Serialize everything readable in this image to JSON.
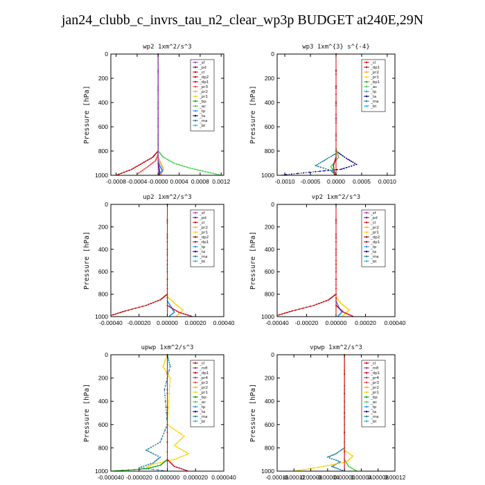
{
  "figure": {
    "title": "jan24_clubb_c_invrs_tau_n2_clear_wp3p  BUDGET at240E,29N"
  },
  "colors": {
    "sf": "#a040c0",
    "pd": "#800080",
    "cl": "#e00000",
    "dp2": "#c00000",
    "dp1": "#d00020",
    "pr3": "#ff4040",
    "pr2": "#ffa040",
    "pr1": "#ffd000",
    "pr4": "#e02060",
    "mfl": "#903090",
    "bp": "#00a000",
    "bp1": "#20b020",
    "ac": "#40d040",
    "tp": "#2090ff",
    "ta": "#000080",
    "ma": "#2080a0",
    "bt": "#00c0e0"
  },
  "chart_data": [
    {
      "type": "line",
      "title": "wp2   1xm^2/s^3",
      "xlabel": "",
      "ylabel": "Pressure [hPa]",
      "xlim": [
        -0.0009,
        0.00125
      ],
      "ylim": [
        1000,
        0
      ],
      "xticks": [
        -0.0008,
        -0.0004,
        0,
        0.0004,
        0.0008,
        0.0012
      ],
      "xtick_labels": [
        "-0.0008",
        "-0.0004",
        "-0.0000",
        "0.0004",
        "0.0008",
        "0.0012"
      ],
      "yticks": [
        0,
        200,
        400,
        600,
        800,
        1000
      ],
      "legend": [
        "_sf",
        "_pd",
        "_cl",
        "_dp2",
        "_dp1",
        "_pr3",
        "_pr2",
        "_pr1",
        "_bp",
        "_ac",
        "_tp",
        "_ta",
        "_ma",
        "_bt"
      ],
      "legend_keys": [
        "sf",
        "pd",
        "cl",
        "dp2",
        "dp1",
        "pr3",
        "pr2",
        "pr1",
        "bp",
        "ac",
        "tp",
        "ta",
        "ma",
        "bt"
      ],
      "series": [
        {
          "key": "ac",
          "x": [
            0,
            0,
            0.0001,
            0.0003,
            0.0006,
            0.0009,
            0.0012
          ],
          "y": [
            0,
            800,
            850,
            900,
            940,
            970,
            1000
          ]
        },
        {
          "key": "dp2",
          "x": [
            0,
            0,
            -0.0001,
            -0.0003,
            -0.0005,
            -0.0008
          ],
          "y": [
            0,
            800,
            850,
            900,
            950,
            1000
          ]
        },
        {
          "key": "pr3",
          "x": [
            0,
            0,
            -5e-05,
            -0.0002,
            -0.0004
          ],
          "y": [
            0,
            830,
            880,
            930,
            990
          ]
        },
        {
          "key": "pr2",
          "x": [
            0,
            0,
            5e-05,
            0.0001,
            5e-05
          ],
          "y": [
            0,
            850,
            900,
            950,
            1000
          ]
        },
        {
          "key": "tp",
          "x": [
            0,
            0,
            3e-05,
            8e-05,
            0
          ],
          "y": [
            0,
            880,
            920,
            960,
            1000
          ]
        },
        {
          "key": "pd",
          "x": [
            0,
            0,
            2e-05,
            3e-05
          ],
          "y": [
            0,
            900,
            950,
            1000
          ]
        },
        {
          "key": "sf",
          "x": [
            0,
            0
          ],
          "y": [
            0,
            1000
          ]
        }
      ]
    },
    {
      "type": "line",
      "title": "wp3   1xm^{3} s^{-4}",
      "xlabel": "",
      "ylabel": "Pressure [hPa]",
      "xlim": [
        -0.00115,
        0.00115
      ],
      "ylim": [
        1000,
        0
      ],
      "xticks": [
        -0.001,
        -0.0005,
        0,
        0.0005,
        0.001
      ],
      "xtick_labels": [
        "-0.0010",
        "-0.0005",
        "0.0000",
        "0.0005",
        "0.0010"
      ],
      "yticks": [
        0,
        200,
        400,
        600,
        800,
        1000
      ],
      "legend": [
        "_cl",
        "_dp1",
        "_pr2",
        "_pr1",
        "_bp1",
        "_ac",
        "_tp",
        "_ta",
        "_ma",
        "_bt"
      ],
      "legend_keys": [
        "cl",
        "dp1",
        "pr2",
        "pr1",
        "bp1",
        "ac",
        "tp",
        "ta",
        "ma",
        "bt"
      ],
      "series": [
        {
          "key": "ta",
          "x": [
            0,
            0,
            0.0002,
            0.0004,
            0.0001,
            -0.0004,
            -0.0011
          ],
          "y": [
            0,
            800,
            860,
            910,
            950,
            970,
            1000
          ]
        },
        {
          "key": "ma",
          "x": [
            0,
            0,
            -0.0002,
            -0.0004,
            -0.0001,
            0
          ],
          "y": [
            0,
            820,
            870,
            920,
            960,
            1000
          ]
        },
        {
          "key": "ac",
          "x": [
            0,
            0,
            5e-05,
            -0.0001,
            2e-05
          ],
          "y": [
            0,
            780,
            850,
            930,
            1000
          ]
        },
        {
          "key": "dp1",
          "x": [
            0,
            0,
            -5e-05,
            -3e-05
          ],
          "y": [
            0,
            850,
            920,
            1000
          ]
        },
        {
          "key": "cl",
          "x": [
            0,
            0
          ],
          "y": [
            0,
            1000
          ]
        }
      ]
    },
    {
      "type": "line",
      "title": "up2   1xm^2/s^3",
      "xlabel": "",
      "ylabel": "Pressure [hPa]",
      "xlim": [
        -0.0004,
        0.0004
      ],
      "ylim": [
        1000,
        0
      ],
      "xticks": [
        -0.0004,
        -0.0002,
        0,
        0.0002,
        0.0004
      ],
      "xtick_labels": [
        "-0.00040",
        "-0.00020",
        "0.00000",
        "0.00020",
        "0.00040"
      ],
      "yticks": [
        0,
        200,
        400,
        600,
        800,
        1000
      ],
      "legend": [
        "_sf",
        "_pd",
        "_cl",
        "_pr2",
        "_pr1",
        "_dp2",
        "_dp1",
        "_tp",
        "_ta",
        "_ma",
        "_bt"
      ],
      "legend_keys": [
        "sf",
        "pd",
        "cl",
        "pr2",
        "pr1",
        "dp2",
        "dp1",
        "tp",
        "ta",
        "ma",
        "bt"
      ],
      "series": [
        {
          "key": "dp2",
          "x": [
            0,
            0,
            -5e-05,
            -0.00015,
            -0.0003,
            -0.0004
          ],
          "y": [
            0,
            800,
            850,
            900,
            950,
            990
          ]
        },
        {
          "key": "pr1",
          "x": [
            0,
            0,
            5e-05,
            0.00011,
            6e-05
          ],
          "y": [
            0,
            820,
            880,
            940,
            1000
          ]
        },
        {
          "key": "tp",
          "x": [
            0,
            0,
            3e-05,
            5e-05,
            1e-05
          ],
          "y": [
            0,
            860,
            920,
            960,
            1000
          ]
        },
        {
          "key": "dp1",
          "x": [
            0,
            0,
            8e-05,
            0.00018
          ],
          "y": [
            0,
            900,
            960,
            1000
          ]
        },
        {
          "key": "cl",
          "x": [
            0,
            0
          ],
          "y": [
            0,
            1000
          ]
        }
      ]
    },
    {
      "type": "line",
      "title": "vp2   1xm^2/s^3",
      "xlabel": "",
      "ylabel": "Pressure [hPa]",
      "xlim": [
        -0.0004,
        0.0004
      ],
      "ylim": [
        1000,
        0
      ],
      "xticks": [
        -0.0004,
        -0.0002,
        0,
        0.0002,
        0.0004
      ],
      "xtick_labels": [
        "-0.00040",
        "-0.00020",
        "0.00000",
        "0.00020",
        "0.00040"
      ],
      "yticks": [
        0,
        200,
        400,
        600,
        800,
        1000
      ],
      "legend": [
        "_sf",
        "_pd",
        "_cl",
        "_pr2",
        "_pr1",
        "_dp2",
        "_dp1",
        "_tp",
        "_ta",
        "_ma",
        "_bt"
      ],
      "legend_keys": [
        "sf",
        "pd",
        "cl",
        "pr2",
        "pr1",
        "dp2",
        "dp1",
        "tp",
        "ta",
        "ma",
        "bt"
      ],
      "series": [
        {
          "key": "dp2",
          "x": [
            0,
            0,
            -5e-05,
            -0.00015,
            -0.0003,
            -0.0004
          ],
          "y": [
            0,
            800,
            850,
            900,
            950,
            990
          ]
        },
        {
          "key": "pr1",
          "x": [
            0,
            0,
            4e-05,
            9e-05,
            4e-05
          ],
          "y": [
            0,
            830,
            890,
            940,
            1000
          ]
        },
        {
          "key": "tp",
          "x": [
            0,
            0,
            2e-05,
            4e-05,
            1e-05
          ],
          "y": [
            0,
            860,
            920,
            960,
            1000
          ]
        },
        {
          "key": "dp1",
          "x": [
            0,
            0,
            5e-05,
            0.00012
          ],
          "y": [
            0,
            900,
            960,
            1000
          ]
        },
        {
          "key": "cl",
          "x": [
            0,
            0
          ],
          "y": [
            0,
            1000
          ]
        }
      ]
    },
    {
      "type": "line",
      "title": "upwp   1xm^2/s^3",
      "xlabel": "",
      "ylabel": "Pressure [hPa]",
      "xlim": [
        -4e-05,
        4e-05
      ],
      "ylim": [
        1000,
        0
      ],
      "xticks": [
        -4e-05,
        -2e-05,
        0,
        2e-05,
        4e-05
      ],
      "xtick_labels": [
        "-0.000040",
        "-0.000020",
        "0.000000",
        "0.000020",
        "0.000040"
      ],
      "yticks": [
        0,
        200,
        400,
        600,
        800,
        1000
      ],
      "legend": [
        "_cl",
        "_mfl",
        "_dp1",
        "_pr4",
        "_pr3",
        "_pr2",
        "_pr1",
        "_bp",
        "_ac",
        "_tp",
        "_ta",
        "_ma",
        "_bt"
      ],
      "legend_keys": [
        "cl",
        "mfl",
        "dp1",
        "pr4",
        "pr3",
        "pr2",
        "pr1",
        "bp",
        "ac",
        "tp",
        "ta",
        "ma",
        "bt"
      ],
      "series": [
        {
          "key": "ma",
          "x": [
            0,
            2e-06,
            -2e-06,
            0,
            -5e-06,
            -1.5e-05,
            -5e-06,
            -1e-05,
            -2e-05,
            0
          ],
          "y": [
            0,
            100,
            300,
            600,
            750,
            820,
            880,
            930,
            970,
            1000
          ]
        },
        {
          "key": "pr1",
          "x": [
            0,
            -3e-06,
            2e-06,
            0,
            1.2e-05,
            5e-06,
            1.5e-05,
            5e-06,
            -1e-05,
            -1.5e-05
          ],
          "y": [
            0,
            100,
            200,
            600,
            700,
            780,
            850,
            900,
            940,
            970
          ]
        },
        {
          "key": "bp",
          "x": [
            0,
            0,
            -5e-06,
            -1.5e-05,
            -4e-05
          ],
          "y": [
            0,
            900,
            950,
            980,
            1000
          ]
        },
        {
          "key": "dp1",
          "x": [
            0,
            0,
            5e-06,
            1.5e-05
          ],
          "y": [
            0,
            900,
            960,
            1000
          ]
        },
        {
          "key": "cl",
          "x": [
            0,
            0
          ],
          "y": [
            0,
            1000
          ]
        }
      ]
    },
    {
      "type": "line",
      "title": "vpwp   1xm^2/s^3",
      "xlabel": "",
      "ylabel": "Pressure [hPa]",
      "xlim": [
        -0.00016,
        0.00012
      ],
      "ylim": [
        1000,
        0
      ],
      "xticks": [
        -0.00016,
        -0.00012,
        -8e-05,
        -4e-05,
        0,
        4e-05,
        8e-05,
        0.00012
      ],
      "xtick_labels": [
        "-0.00016",
        "-0.00012",
        "-0.00008",
        "-0.00004",
        "0.00000",
        "0.00004",
        "0.00008",
        "0.00012"
      ],
      "yticks": [
        0,
        200,
        400,
        600,
        800,
        1000
      ],
      "legend": [
        "_cl",
        "_mfl",
        "_dp1",
        "_pr4",
        "_pr3",
        "_pr2",
        "_pr1",
        "_bp",
        "_ac",
        "_tp",
        "_ta",
        "_ma",
        "_bt"
      ],
      "legend_keys": [
        "cl",
        "mfl",
        "dp1",
        "pr4",
        "pr3",
        "pr2",
        "pr1",
        "bp",
        "ac",
        "tp",
        "ta",
        "ma",
        "bt"
      ],
      "series": [
        {
          "key": "ma",
          "x": [
            0,
            0,
            -2e-05,
            -4e-05,
            -1e-05,
            -3e-05,
            0
          ],
          "y": [
            0,
            800,
            850,
            880,
            920,
            960,
            1000
          ]
        },
        {
          "key": "pr1",
          "x": [
            0,
            0,
            2e-05,
            5e-06,
            -5e-05,
            -0.00012
          ],
          "y": [
            0,
            820,
            870,
            920,
            960,
            1000
          ]
        },
        {
          "key": "ac",
          "x": [
            0,
            0,
            1e-05,
            3e-05
          ],
          "y": [
            0,
            900,
            960,
            1000
          ]
        },
        {
          "key": "mfl",
          "x": [
            0,
            0
          ],
          "y": [
            0,
            1000
          ]
        },
        {
          "key": "cl",
          "x": [
            0,
            0
          ],
          "y": [
            0,
            1000
          ]
        }
      ]
    }
  ]
}
